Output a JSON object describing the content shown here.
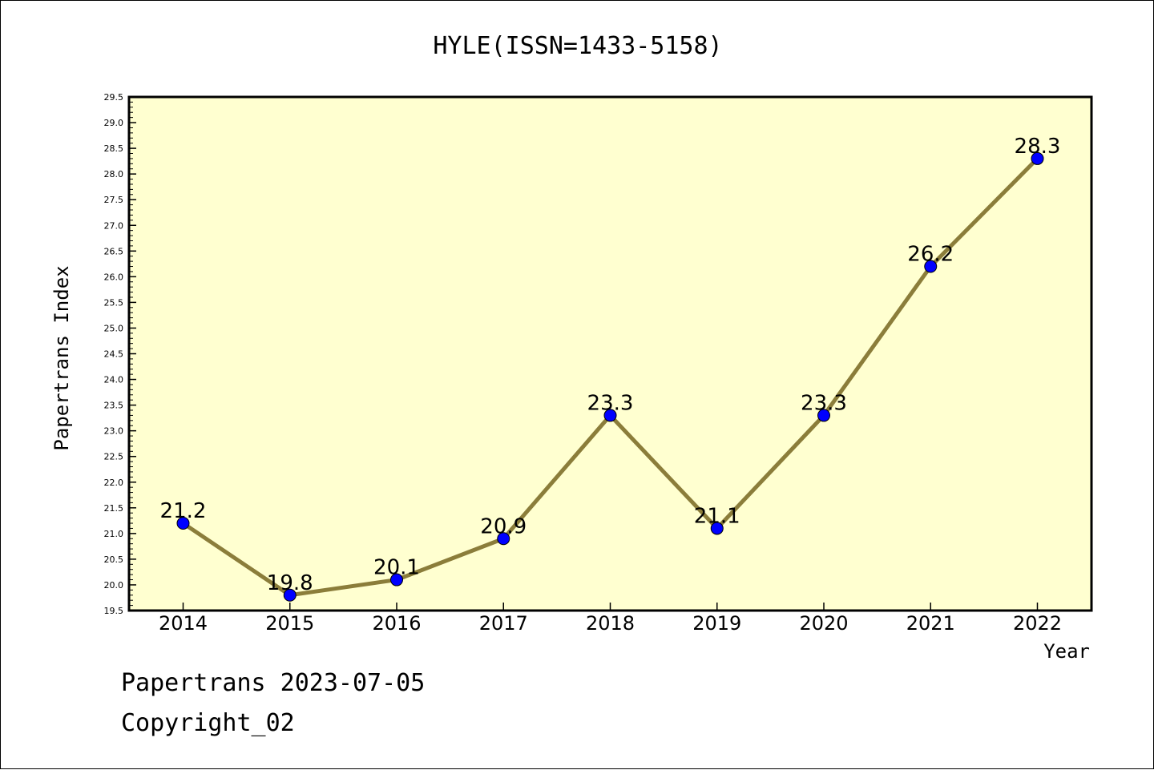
{
  "chart_data": {
    "type": "line",
    "title": "HYLE(ISSN=1433-5158)",
    "xlabel": "Year",
    "ylabel": "Papertrans Index",
    "categories": [
      "2014",
      "2015",
      "2016",
      "2017",
      "2018",
      "2019",
      "2020",
      "2021",
      "2022"
    ],
    "values": [
      21.2,
      19.8,
      20.1,
      20.9,
      23.3,
      21.1,
      23.3,
      26.2,
      28.3
    ],
    "data_labels": [
      "21.2",
      "19.8",
      "20.1",
      "20.9",
      "23.3",
      "21.1",
      "23.3",
      "26.2",
      "28.3"
    ],
    "ylim": [
      19.5,
      29.5
    ],
    "yticks": [
      "19.5",
      "20.0",
      "20.5",
      "21.0",
      "21.5",
      "22.0",
      "22.5",
      "23.0",
      "23.5",
      "24.0",
      "24.5",
      "25.0",
      "25.5",
      "26.0",
      "26.5",
      "27.0",
      "27.5",
      "28.0",
      "28.5",
      "29.0",
      "29.5"
    ],
    "grid": false,
    "colors": {
      "plot_background": "#ffffd0",
      "line": "#8b7d3a",
      "marker": "#0000ff"
    }
  },
  "footer": {
    "line1": "Papertrans 2023-07-05",
    "line2": "Copyright_02"
  }
}
